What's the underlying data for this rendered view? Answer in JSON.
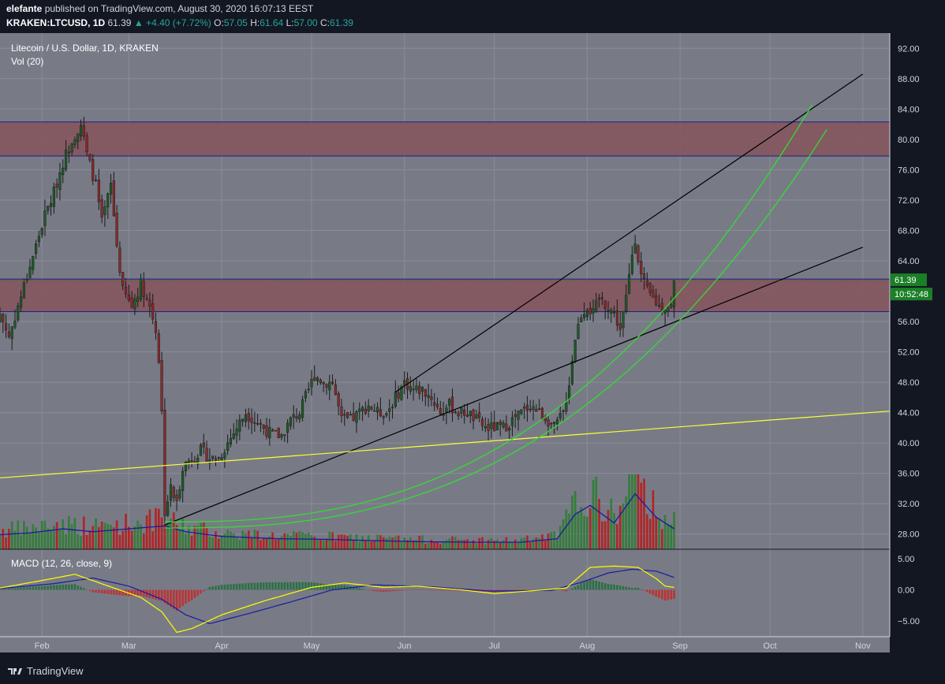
{
  "header": {
    "author": "elefante",
    "published_text": "published on TradingView.com, August 30, 2020 16:07:13 EEST",
    "symbol": "KRAKEN:LTCUSD, 1D",
    "last": "61.39",
    "change_arrow": "▲",
    "change": "+4.40 (+7.72%)",
    "o_label": "O:",
    "o_value": "57.05",
    "h_label": "H:",
    "h_value": "61.64",
    "l_label": "L:",
    "l_value": "57.00",
    "c_label": "C:",
    "c_value": "61.39"
  },
  "footer": {
    "brand": "TradingView"
  },
  "colors": {
    "background": "#787b86",
    "grid": "#8a8d97",
    "zone_fill": "#85545c",
    "zone_border": "#1e1e8c",
    "candle_up": "#1e5c28",
    "candle_down": "#8b2a2a",
    "vol_up": "#2e7d32",
    "vol_down": "#b71c1c",
    "ma_line": "#1a1aa0",
    "trendline": "#000000",
    "curve": "#33dd33",
    "support": "#ffff33",
    "macd_line": "#1a1aa0",
    "signal_line": "#ffff00",
    "price_tag": "#1b7f27"
  },
  "chart_data": {
    "type": "candlestick",
    "title": "Litecoin / U.S. Dollar, 1D, KRAKEN",
    "volume_label": "Vol (20)",
    "macd_label": "MACD (12, 26, close, 9)",
    "ylim": [
      26,
      94
    ],
    "y_ticks": [
      "92.00",
      "88.00",
      "84.00",
      "80.00",
      "76.00",
      "72.00",
      "68.00",
      "64.00",
      "60.00",
      "56.00",
      "52.00",
      "48.00",
      "44.00",
      "40.00",
      "36.00",
      "32.00",
      "28.00"
    ],
    "macd_ylim": [
      -7.5,
      6.5
    ],
    "macd_ticks": [
      "5.00",
      "0.00",
      "−5.00"
    ],
    "x_labels": [
      {
        "label": "Feb",
        "date": "2020-02-01"
      },
      {
        "label": "Mar",
        "date": "2020-03-01"
      },
      {
        "label": "Apr",
        "date": "2020-04-01"
      },
      {
        "label": "May",
        "date": "2020-05-01"
      },
      {
        "label": "Jun",
        "date": "2020-06-01"
      },
      {
        "label": "Jul",
        "date": "2020-07-01"
      },
      {
        "label": "Aug",
        "date": "2020-08-01"
      },
      {
        "label": "Sep",
        "date": "2020-09-01"
      },
      {
        "label": "Oct",
        "date": "2020-10-01"
      },
      {
        "label": "Nov",
        "date": "2020-11-01"
      }
    ],
    "x_start": "2020-01-18",
    "x_end": "2020-11-10",
    "last_price": "61.39",
    "countdown": "10:52:48",
    "close_path": [
      [
        "2020-01-18",
        57
      ],
      [
        "2020-01-21",
        54
      ],
      [
        "2020-01-24",
        58
      ],
      [
        "2020-01-27",
        62
      ],
      [
        "2020-01-30",
        66
      ],
      [
        "2020-02-02",
        70
      ],
      [
        "2020-02-05",
        73
      ],
      [
        "2020-02-08",
        77
      ],
      [
        "2020-02-11",
        80
      ],
      [
        "2020-02-14",
        82
      ],
      [
        "2020-02-16",
        78
      ],
      [
        "2020-02-19",
        74
      ],
      [
        "2020-02-21",
        69
      ],
      [
        "2020-02-24",
        74
      ],
      [
        "2020-02-26",
        66
      ],
      [
        "2020-02-28",
        60
      ],
      [
        "2020-03-02",
        58
      ],
      [
        "2020-03-05",
        61
      ],
      [
        "2020-03-08",
        58
      ],
      [
        "2020-03-10",
        55
      ],
      [
        "2020-03-11",
        51
      ],
      [
        "2020-03-12",
        44
      ],
      [
        "2020-03-13",
        31
      ],
      [
        "2020-03-15",
        34
      ],
      [
        "2020-03-17",
        32
      ],
      [
        "2020-03-19",
        37
      ],
      [
        "2020-03-22",
        38
      ],
      [
        "2020-03-25",
        39
      ],
      [
        "2020-03-28",
        38
      ],
      [
        "2020-03-31",
        38
      ],
      [
        "2020-04-03",
        40
      ],
      [
        "2020-04-06",
        42
      ],
      [
        "2020-04-09",
        44
      ],
      [
        "2020-04-12",
        43
      ],
      [
        "2020-04-15",
        42
      ],
      [
        "2020-04-18",
        41
      ],
      [
        "2020-04-21",
        41
      ],
      [
        "2020-04-24",
        43
      ],
      [
        "2020-04-27",
        44
      ],
      [
        "2020-04-30",
        47
      ],
      [
        "2020-05-02",
        49
      ],
      [
        "2020-05-05",
        48
      ],
      [
        "2020-05-08",
        48
      ],
      [
        "2020-05-11",
        43
      ],
      [
        "2020-05-14",
        43
      ],
      [
        "2020-05-17",
        44
      ],
      [
        "2020-05-20",
        45
      ],
      [
        "2020-05-23",
        44
      ],
      [
        "2020-05-26",
        44
      ],
      [
        "2020-05-29",
        46
      ],
      [
        "2020-06-01",
        48
      ],
      [
        "2020-06-04",
        47
      ],
      [
        "2020-06-07",
        47
      ],
      [
        "2020-06-10",
        46
      ],
      [
        "2020-06-13",
        44
      ],
      [
        "2020-06-16",
        45
      ],
      [
        "2020-06-19",
        44
      ],
      [
        "2020-06-22",
        44
      ],
      [
        "2020-06-25",
        43
      ],
      [
        "2020-06-28",
        42
      ],
      [
        "2020-07-01",
        42
      ],
      [
        "2020-07-04",
        42
      ],
      [
        "2020-07-07",
        43
      ],
      [
        "2020-07-10",
        44
      ],
      [
        "2020-07-13",
        45
      ],
      [
        "2020-07-16",
        44
      ],
      [
        "2020-07-19",
        43
      ],
      [
        "2020-07-21",
        42
      ],
      [
        "2020-07-24",
        44
      ],
      [
        "2020-07-26",
        48
      ],
      [
        "2020-07-28",
        54
      ],
      [
        "2020-07-30",
        57
      ],
      [
        "2020-08-01",
        58
      ],
      [
        "2020-08-03",
        57
      ],
      [
        "2020-08-05",
        59
      ],
      [
        "2020-08-08",
        58
      ],
      [
        "2020-08-10",
        57
      ],
      [
        "2020-08-12",
        55
      ],
      [
        "2020-08-14",
        59
      ],
      [
        "2020-08-16",
        65
      ],
      [
        "2020-08-17",
        67
      ],
      [
        "2020-08-19",
        62
      ],
      [
        "2020-08-21",
        60
      ],
      [
        "2020-08-23",
        59
      ],
      [
        "2020-08-25",
        58
      ],
      [
        "2020-08-27",
        58
      ],
      [
        "2020-08-29",
        58
      ],
      [
        "2020-08-30",
        61.39
      ]
    ],
    "volume_path": [
      [
        "2020-01-18",
        0.25
      ],
      [
        "2020-01-28",
        0.28
      ],
      [
        "2020-02-08",
        0.35
      ],
      [
        "2020-02-18",
        0.3
      ],
      [
        "2020-03-01",
        0.35
      ],
      [
        "2020-03-13",
        0.4
      ],
      [
        "2020-03-20",
        0.3
      ],
      [
        "2020-04-01",
        0.22
      ],
      [
        "2020-04-20",
        0.18
      ],
      [
        "2020-05-05",
        0.17
      ],
      [
        "2020-05-20",
        0.15
      ],
      [
        "2020-06-05",
        0.13
      ],
      [
        "2020-06-25",
        0.12
      ],
      [
        "2020-07-10",
        0.12
      ],
      [
        "2020-07-22",
        0.18
      ],
      [
        "2020-07-28",
        0.6
      ],
      [
        "2020-08-02",
        0.75
      ],
      [
        "2020-08-10",
        0.45
      ],
      [
        "2020-08-17",
        0.95
      ],
      [
        "2020-08-24",
        0.55
      ],
      [
        "2020-08-30",
        0.35
      ]
    ],
    "macd_path": [
      [
        "2020-01-18",
        0.3
      ],
      [
        "2020-02-01",
        1.5
      ],
      [
        "2020-02-12",
        2.5
      ],
      [
        "2020-02-22",
        0.8
      ],
      [
        "2020-03-05",
        -1.2
      ],
      [
        "2020-03-12",
        -3.5
      ],
      [
        "2020-03-17",
        -6.8
      ],
      [
        "2020-03-22",
        -6.2
      ],
      [
        "2020-04-01",
        -4.0
      ],
      [
        "2020-04-15",
        -1.8
      ],
      [
        "2020-05-01",
        0.4
      ],
      [
        "2020-05-12",
        1.1
      ],
      [
        "2020-05-25",
        0.4
      ],
      [
        "2020-06-05",
        0.6
      ],
      [
        "2020-06-20",
        0.0
      ],
      [
        "2020-07-01",
        -0.6
      ],
      [
        "2020-07-15",
        -0.1
      ],
      [
        "2020-07-25",
        0.3
      ],
      [
        "2020-08-02",
        3.6
      ],
      [
        "2020-08-10",
        3.8
      ],
      [
        "2020-08-18",
        3.6
      ],
      [
        "2020-08-24",
        1.8
      ],
      [
        "2020-08-27",
        0.6
      ],
      [
        "2020-08-30",
        0.4
      ]
    ],
    "signal_path": [
      [
        "2020-01-18",
        0.2
      ],
      [
        "2020-02-05",
        1.0
      ],
      [
        "2020-02-18",
        1.9
      ],
      [
        "2020-03-01",
        0.6
      ],
      [
        "2020-03-12",
        -1.5
      ],
      [
        "2020-03-20",
        -4.0
      ],
      [
        "2020-03-28",
        -5.4
      ],
      [
        "2020-04-10",
        -3.8
      ],
      [
        "2020-04-25",
        -1.8
      ],
      [
        "2020-05-08",
        0.0
      ],
      [
        "2020-05-22",
        0.8
      ],
      [
        "2020-06-10",
        0.5
      ],
      [
        "2020-06-30",
        -0.2
      ],
      [
        "2020-07-20",
        -0.1
      ],
      [
        "2020-07-30",
        1.2
      ],
      [
        "2020-08-08",
        2.7
      ],
      [
        "2020-08-16",
        3.3
      ],
      [
        "2020-08-24",
        3.0
      ],
      [
        "2020-08-30",
        2.0
      ]
    ],
    "zones": [
      {
        "from": 77.8,
        "to": 82.3
      },
      {
        "from": 57.3,
        "to": 61.6
      }
    ],
    "lines": [
      {
        "kind": "trendline",
        "from": [
          "2020-03-13",
          29.2
        ],
        "to": [
          "2020-11-01",
          65.8
        ]
      },
      {
        "kind": "trendline",
        "from": [
          "2020-05-29",
          46.7
        ],
        "to": [
          "2020-11-01",
          88.6
        ]
      },
      {
        "kind": "support",
        "from": [
          "2020-01-18",
          35.4
        ],
        "to": [
          "2020-11-10",
          44.2
        ]
      }
    ],
    "curves": [
      {
        "from": [
          "2020-03-13",
          29.6
        ],
        "to": [
          "2020-10-15",
          84.5
        ]
      },
      {
        "from": [
          "2020-03-13",
          28.8
        ],
        "to": [
          "2020-10-20",
          81.3
        ]
      }
    ]
  }
}
